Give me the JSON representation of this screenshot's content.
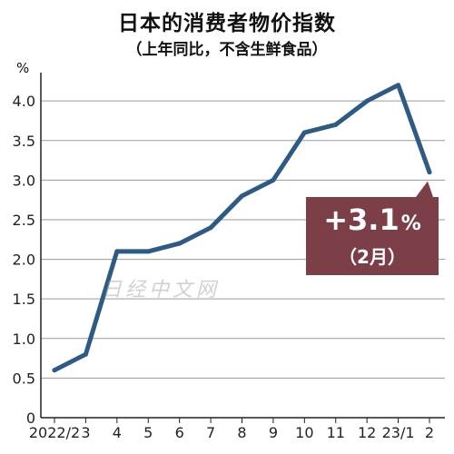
{
  "chart_data": {
    "type": "line",
    "title": "日本的消费者物价指数",
    "subtitle": "（上年同比，不含生鲜食品）",
    "unit": "%",
    "categories": [
      "2022/2",
      "3",
      "4",
      "5",
      "6",
      "7",
      "8",
      "9",
      "10",
      "11",
      "12",
      "23/1",
      "2"
    ],
    "values": [
      0.6,
      0.8,
      2.1,
      2.1,
      2.2,
      2.4,
      2.8,
      3.0,
      3.6,
      3.7,
      4.0,
      4.2,
      3.1
    ],
    "y_ticks": [
      "0",
      "0.5",
      "1.0",
      "1.5",
      "2.0",
      "2.5",
      "3.0",
      "3.5",
      "4.0"
    ],
    "ylim": [
      0,
      4.3
    ],
    "grid": true,
    "line_color": "#2e5b85",
    "annotation": {
      "value": "+3.1",
      "unit": "%",
      "label": "（2月）",
      "color": "#7d3f47"
    }
  },
  "watermark": "日经中文网"
}
